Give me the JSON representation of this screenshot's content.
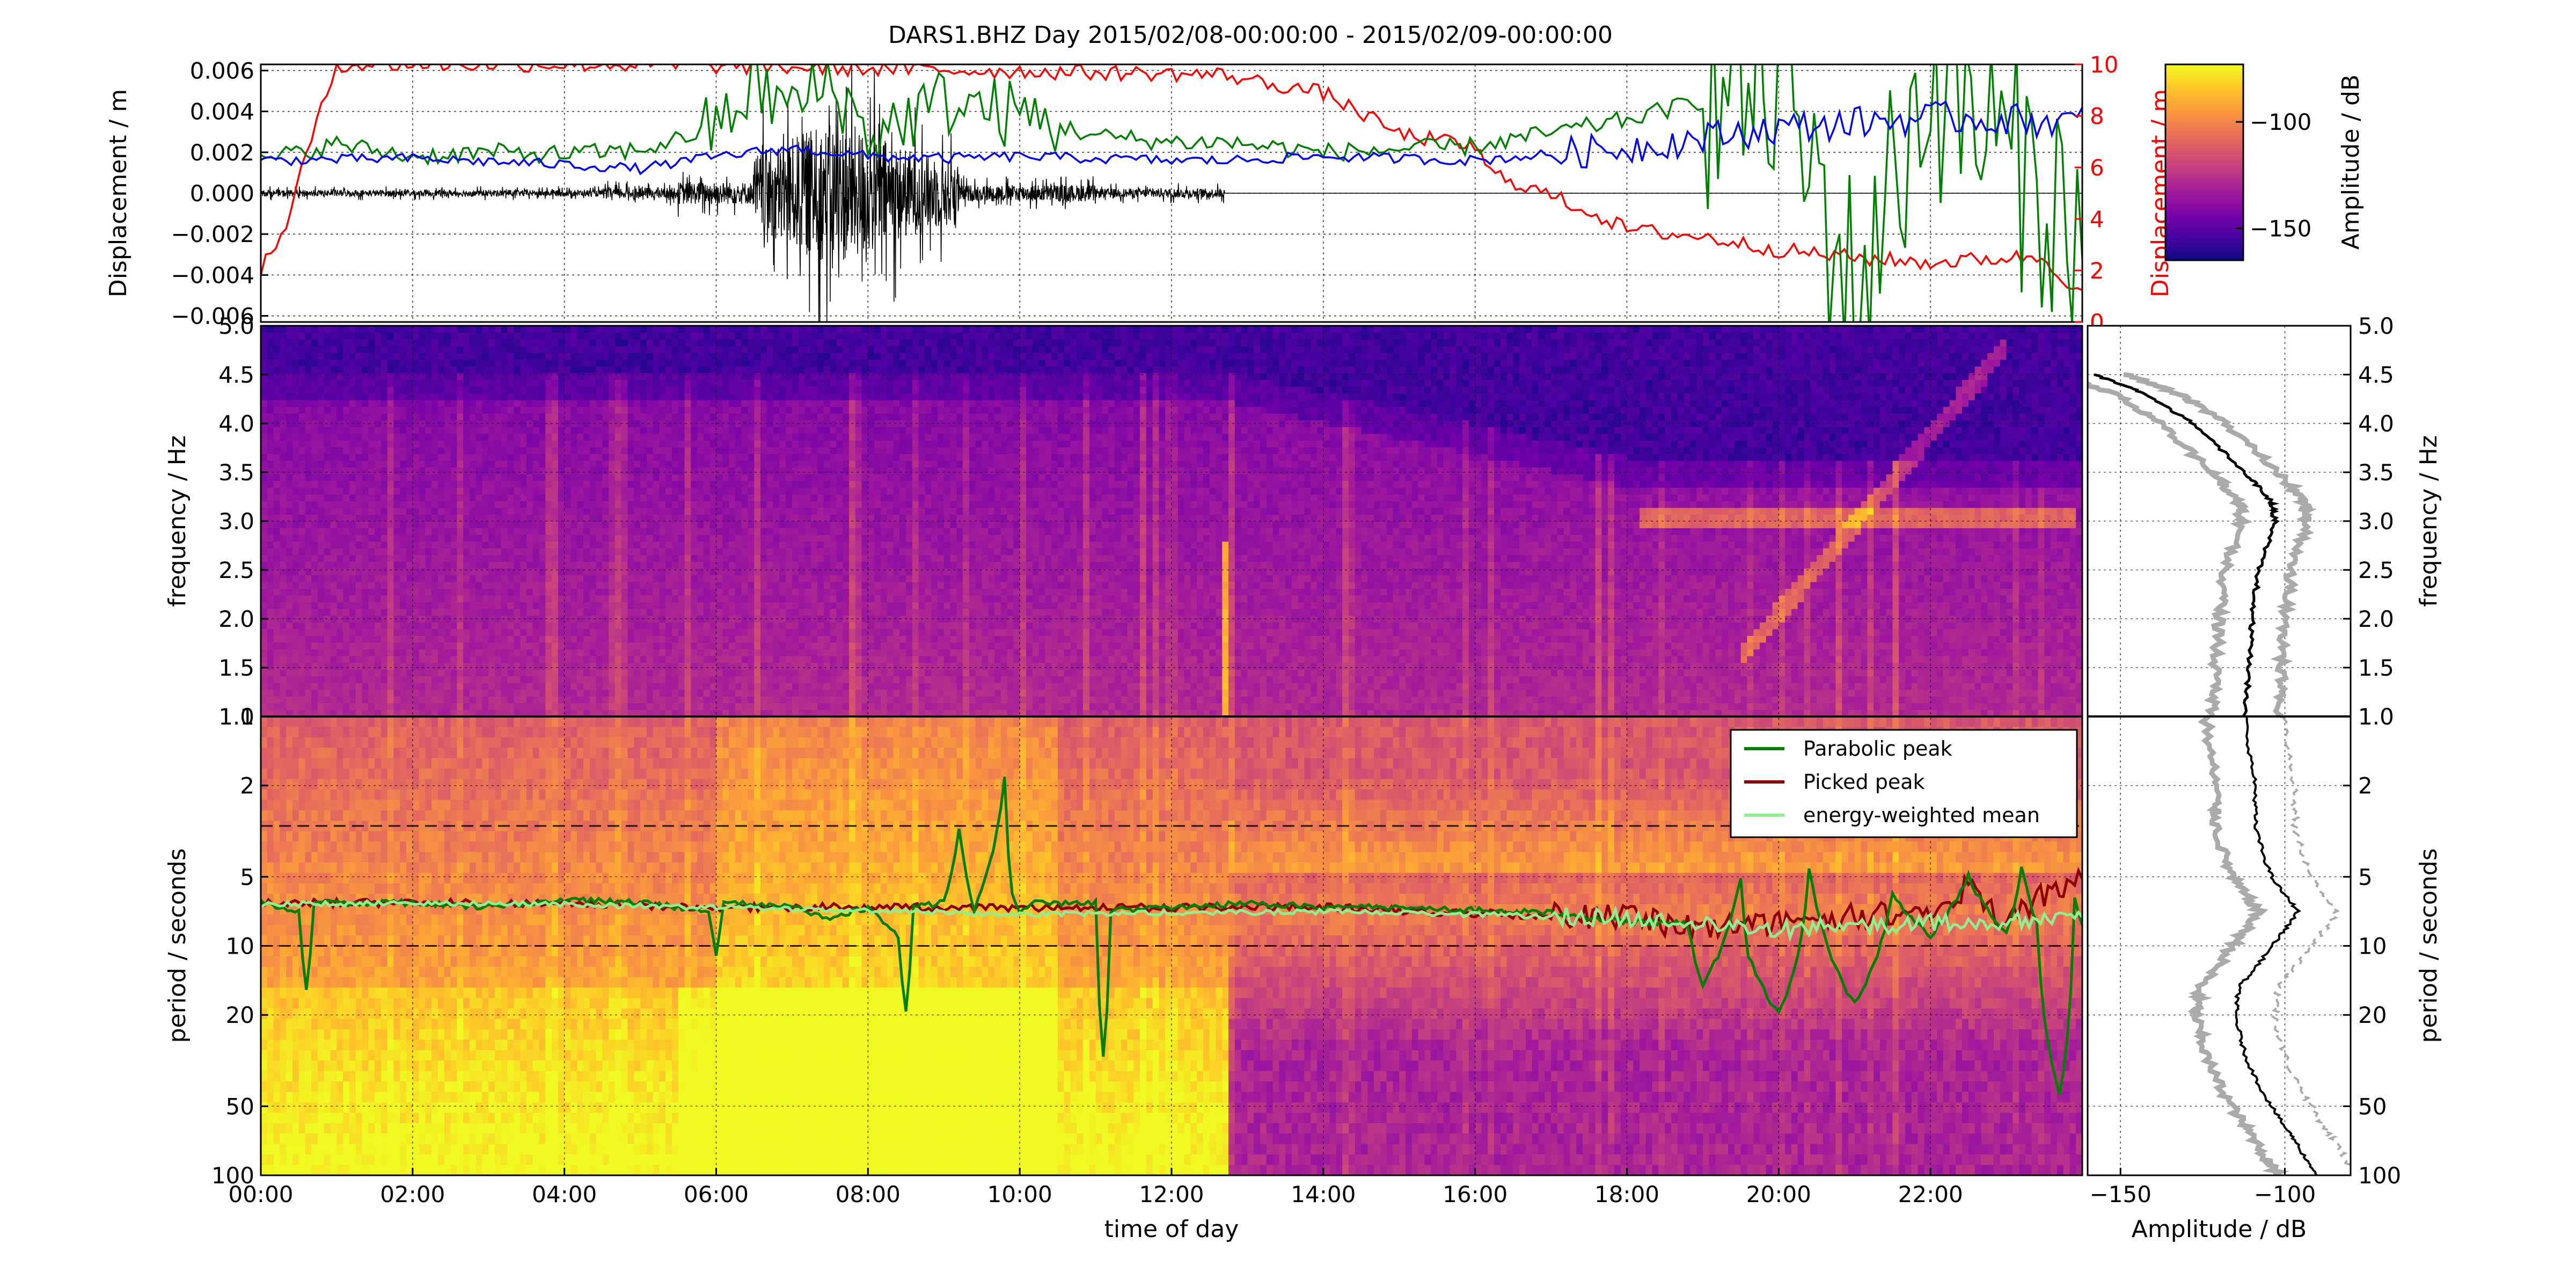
{
  "figure": {
    "title": "DARS1.BHZ Day 2015/02/08-00:00:00 - 2015/02/09-00:00:00"
  },
  "colors": {
    "trace": "#000000",
    "series_green": "#008000",
    "series_blue": "#0000ff",
    "series_red": "#ff0000",
    "picked": "#8b0000",
    "energy_mean": "#90ee90",
    "profile_gray": "#aaaaaa",
    "colormap": [
      "#0d0887",
      "#46039f",
      "#7201a8",
      "#9c179e",
      "#bd3786",
      "#d8576b",
      "#ed7953",
      "#fb9f3a",
      "#fdca26",
      "#f0f921"
    ]
  },
  "chart_data": [
    {
      "type": "line",
      "panel": "displacement",
      "ylabel": "Displacement / m",
      "ylim": [
        -0.0063,
        0.0063
      ],
      "yticks": [
        "0.006",
        "0.004",
        "0.002",
        "0.000",
        "−0.002",
        "−0.004",
        "−0.006"
      ],
      "ylabel_right": "Displacement / m",
      "ylim_right": [
        0,
        10
      ],
      "yticks_right": [
        "10",
        "8",
        "6",
        "4",
        "2",
        "0"
      ],
      "xlim": [
        0,
        24
      ],
      "grid": true,
      "series": [
        {
          "axis": "left",
          "x": [
            0,
            2,
            4,
            5,
            6,
            7,
            7.5,
            8,
            9,
            10,
            11,
            12,
            12.7,
            14,
            16,
            18,
            20,
            22,
            24
          ],
          "values": [
            0.0016,
            0.0017,
            0.0014,
            0.0012,
            0.0018,
            0.0022,
            0.002,
            0.0018,
            0.0017,
            0.0018,
            0.0017,
            0.0016,
            0.0016,
            0.0018,
            0.0016,
            0.0022,
            0.0032,
            0.0037,
            0.0035
          ]
        },
        {
          "axis": "left",
          "x": [
            0,
            1,
            2,
            3,
            4,
            5,
            6,
            6.5,
            7,
            7.5,
            8,
            9,
            10,
            11,
            12,
            12.7,
            14,
            16,
            18,
            20,
            21,
            22,
            24
          ],
          "values": [
            0.0016,
            0.0024,
            0.0018,
            0.002,
            0.0019,
            0.0021,
            0.0032,
            0.0052,
            0.0042,
            0.0055,
            0.0028,
            0.0045,
            0.0038,
            0.0028,
            0.0025,
            0.0025,
            0.002,
            0.0023,
            0.0036,
            0.0055,
            -0.005,
            0.0058,
            -0.002
          ]
        },
        {
          "axis": "right",
          "x": [
            0,
            0.3,
            0.6,
            1,
            2,
            3,
            4,
            4.5,
            12.7,
            13,
            14,
            15,
            16,
            16.2,
            17,
            17.5,
            18,
            19,
            20,
            21,
            22,
            23,
            23.5,
            24
          ],
          "values": [
            2,
            3.5,
            6.5,
            10,
            10,
            10,
            10,
            10,
            9.6,
            9.4,
            8.9,
            7.3,
            6.8,
            5.8,
            4.9,
            4.3,
            3.6,
            3.3,
            2.8,
            2.5,
            2.3,
            2.5,
            2.5,
            1
          ]
        },
        {
          "axis": "left",
          "kind": "seismogram",
          "x_range": [
            0,
            12.7
          ],
          "max_amplitude": 0.0075
        }
      ]
    },
    {
      "type": "heatmap",
      "panel": "frequency_spectrogram",
      "ylabel": "frequency / Hz",
      "ylim": [
        1.0,
        5.0
      ],
      "yticks": [
        "1.0",
        "1.5",
        "2.0",
        "2.5",
        "3.0",
        "3.5",
        "4.0",
        "4.5",
        "5.0"
      ],
      "xlim": [
        0,
        24
      ],
      "grid": true,
      "features": [
        {
          "name": "microseism band",
          "x": [
            18.2,
            23.9
          ],
          "y": [
            2.9,
            3.2
          ]
        },
        {
          "name": "gliding tremor",
          "x": [
            19.5,
            23.0
          ],
          "y": [
            1.4,
            4.9
          ]
        },
        {
          "name": "broadband transient",
          "x": [
            12.65,
            12.75
          ],
          "y": [
            1.0,
            2.8
          ]
        }
      ]
    },
    {
      "type": "heatmap",
      "panel": "period_spectrogram",
      "ylabel": "period / seconds",
      "ylim": [
        1,
        100
      ],
      "yscale": "log",
      "yticks": [
        "1",
        "2",
        "5",
        "10",
        "20",
        "50",
        "100"
      ],
      "xlabel": "time of day",
      "xticks": [
        "00:00",
        "02:00",
        "04:00",
        "06:00",
        "08:00",
        "10:00",
        "12:00",
        "14:00",
        "16:00",
        "18:00",
        "20:00",
        "22:00"
      ],
      "xlim": [
        0,
        24
      ],
      "grid": true,
      "reference_lines": [
        3,
        10
      ],
      "legend": {
        "location": "top-right",
        "entries": [
          "Parabolic peak",
          "Picked peak",
          "energy-weighted mean"
        ]
      },
      "series": [
        {
          "name": "Parabolic peak",
          "x": [
            0,
            0.5,
            0.6,
            0.7,
            1,
            2,
            3,
            4,
            5,
            5.9,
            6,
            6.1,
            7,
            7.5,
            8,
            8.4,
            8.5,
            8.6,
            9,
            9.2,
            9.4,
            9.8,
            9.9,
            10,
            10.2,
            11,
            11.1,
            11.2,
            12,
            13,
            14,
            15,
            16,
            17,
            18,
            18.8,
            19,
            19.5,
            19.6,
            20,
            20.3,
            20.4,
            21,
            21.5,
            22,
            22.5,
            23,
            23.2,
            23.4,
            23.7,
            23.9,
            24
          ],
          "values": [
            6.5,
            7,
            16,
            6.5,
            6.5,
            6.5,
            6.8,
            6.3,
            6.5,
            7,
            11,
            6.5,
            6.8,
            7.5,
            6.8,
            9,
            19,
            6.8,
            6.5,
            3,
            7,
            1.8,
            6,
            7,
            6.5,
            6.5,
            30,
            7,
            6.8,
            6.5,
            6.8,
            6.8,
            7,
            7.2,
            7.8,
            8,
            15,
            5,
            11,
            20,
            9,
            4.5,
            18,
            6,
            9,
            5,
            9,
            4.5,
            8,
            45,
            6,
            8
          ]
        },
        {
          "name": "Picked peak",
          "x": [
            0,
            2,
            4,
            6,
            8,
            10,
            12,
            14,
            16,
            18,
            19,
            20,
            21,
            22,
            22.5,
            23,
            23.5,
            24
          ],
          "values": [
            6.5,
            6.5,
            6.5,
            6.8,
            6.8,
            6.8,
            6.8,
            6.8,
            7.2,
            7.6,
            8.5,
            8,
            7.5,
            7,
            5.5,
            8,
            6,
            5
          ]
        },
        {
          "name": "energy-weighted mean",
          "x": [
            0,
            2,
            4,
            6,
            8,
            10,
            12,
            14,
            16,
            18,
            19,
            20,
            21,
            22,
            23,
            24
          ],
          "values": [
            6.6,
            6.5,
            6.6,
            6.8,
            7,
            7.3,
            7.2,
            7.1,
            7.3,
            7.6,
            8,
            8.5,
            8.2,
            8,
            7.8,
            7.5
          ]
        }
      ]
    },
    {
      "type": "line",
      "panel": "amplitude_profile",
      "xlabel": "Amplitude / dB",
      "xlim": [
        -160,
        -80
      ],
      "xticks": [
        "−150",
        "−100"
      ],
      "grid": true,
      "series": [
        {
          "y_frequency": [
            1.0,
            1.5,
            2.0,
            2.5,
            3.0,
            3.2,
            3.5,
            4.0,
            4.3,
            4.5
          ],
          "values": [
            -112,
            -111,
            -110,
            -108,
            -103,
            -104,
            -112,
            -128,
            -142,
            -158
          ]
        },
        {
          "y_period": [
            1,
            2,
            3,
            5,
            7,
            10,
            15,
            20,
            30,
            50,
            70,
            100
          ],
          "values": [
            -112,
            -109,
            -109,
            -104,
            -96,
            -104,
            -114,
            -115,
            -112,
            -104,
            -97,
            -90
          ]
        }
      ]
    },
    {
      "type": "heatmap",
      "panel": "colorbar",
      "ylabel": "Amplitude / dB",
      "ylim": [
        -165,
        -73
      ],
      "yticks": [
        "−100",
        "−150"
      ]
    }
  ]
}
